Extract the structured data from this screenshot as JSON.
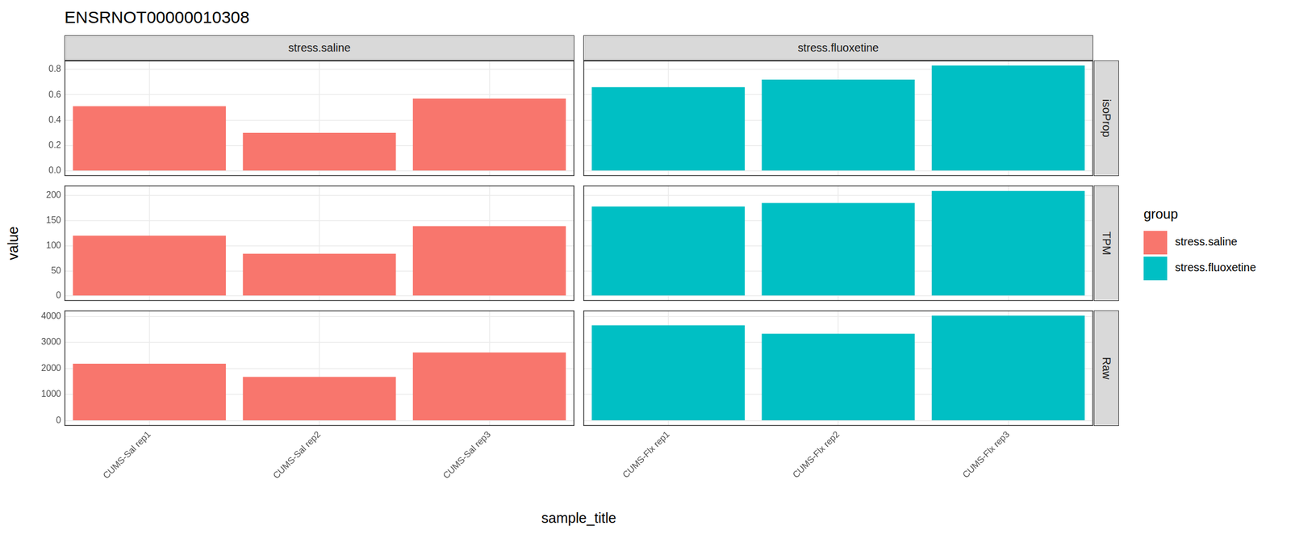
{
  "title": "ENSRNOT00000010308",
  "x_label": "sample_title",
  "y_label": "value",
  "legend_title": "group",
  "legend": "right",
  "chart_data": [
    {
      "type": "bar",
      "facet_column": "stress.saline",
      "facet_row": "isoProp",
      "categories": [
        "CUMS-Sal rep1",
        "CUMS-Sal rep2",
        "CUMS-Sal rep3"
      ],
      "series": [
        {
          "name": "stress.saline",
          "color": "#f8766d",
          "values": [
            0.51,
            0.3,
            0.57
          ]
        }
      ],
      "ylim": [
        -0.04,
        0.87
      ],
      "yticks": [
        {
          "value": 0,
          "label": "0.0"
        },
        0.2,
        0.4,
        0.6,
        0.8
      ],
      "grid": true,
      "tick_labels": "y"
    },
    {
      "type": "bar",
      "facet_column": "stress.fluoxetine",
      "facet_row": "isoProp",
      "categories": [
        "CUMS-Flx rep1",
        "CUMS-Flx rep2",
        "CUMS-Flx rep3"
      ],
      "series": [
        {
          "name": "stress.fluoxetine",
          "color": "#00bfc4",
          "values": [
            0.66,
            0.72,
            0.83
          ]
        }
      ],
      "ylim": [
        -0.04,
        0.87
      ],
      "yticks": [
        {
          "value": 0,
          "label": "0.0"
        },
        0.2,
        0.4,
        0.6,
        0.8
      ],
      "grid": true,
      "tick_labels": false
    },
    {
      "type": "bar",
      "facet_column": "stress.saline",
      "facet_row": "TPM",
      "categories": [
        "CUMS-Sal rep1",
        "CUMS-Sal rep2",
        "CUMS-Sal rep3"
      ],
      "series": [
        {
          "name": "stress.saline",
          "color": "#f8766d",
          "values": [
            120,
            84,
            139
          ]
        }
      ],
      "ylim": [
        -10,
        220
      ],
      "yticks": [
        0,
        50,
        100,
        150,
        200
      ],
      "grid": true,
      "tick_labels": "y"
    },
    {
      "type": "bar",
      "facet_column": "stress.fluoxetine",
      "facet_row": "TPM",
      "categories": [
        "CUMS-Flx rep1",
        "CUMS-Flx rep2",
        "CUMS-Flx rep3"
      ],
      "series": [
        {
          "name": "stress.fluoxetine",
          "color": "#00bfc4",
          "values": [
            178,
            185,
            209
          ]
        }
      ],
      "ylim": [
        -10,
        220
      ],
      "yticks": [
        0,
        50,
        100,
        150,
        200
      ],
      "grid": true,
      "tick_labels": false
    },
    {
      "type": "bar",
      "facet_column": "stress.saline",
      "facet_row": "Raw",
      "categories": [
        "CUMS-Sal rep1",
        "CUMS-Sal rep2",
        "CUMS-Sal rep3"
      ],
      "series": [
        {
          "name": "stress.saline",
          "color": "#f8766d",
          "values": [
            2180,
            1680,
            2610
          ]
        }
      ],
      "ylim": [
        -200,
        4220
      ],
      "yticks": [
        0,
        1000,
        2000,
        3000,
        4000
      ],
      "grid": true
    },
    {
      "type": "bar",
      "facet_column": "stress.fluoxetine",
      "facet_row": "Raw",
      "categories": [
        "CUMS-Flx rep1",
        "CUMS-Flx rep2",
        "CUMS-Flx rep3"
      ],
      "series": [
        {
          "name": "stress.fluoxetine",
          "color": "#00bfc4",
          "values": [
            3650,
            3330,
            4020
          ]
        }
      ],
      "ylim": [
        -200,
        4220
      ],
      "yticks": [
        0,
        1000,
        2000,
        3000,
        4000
      ],
      "grid": true,
      "tick_labels": "x"
    }
  ]
}
